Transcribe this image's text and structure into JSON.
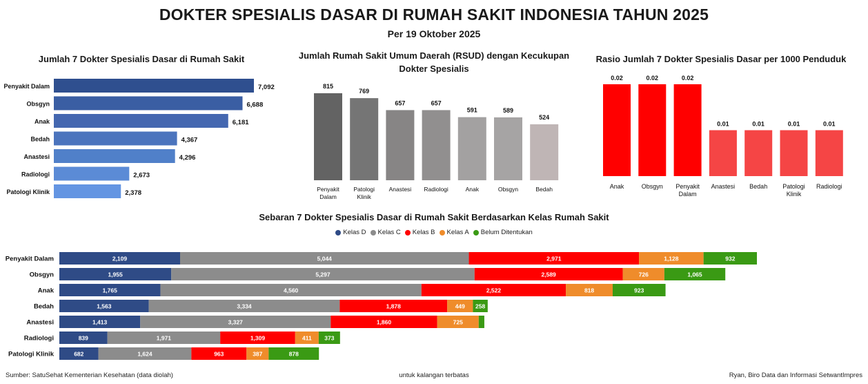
{
  "header": {
    "title": "DOKTER SPESIALIS DASAR DI RUMAH SAKIT INDONESIA TAHUN 2025",
    "subtitle": "Per 19 Oktober 2025"
  },
  "footer": {
    "source": "Sumber: SatuSehat Kementerian Kesehatan (data diolah)",
    "note": "untuk kalangan terbatas",
    "author": "Ryan, Biro Data dan Informasi SetwantImpres"
  },
  "chart_data": [
    {
      "type": "bar",
      "orientation": "horizontal",
      "title": "Jumlah 7 Dokter Spesialis Dasar di Rumah Sakit",
      "categories": [
        "Penyakit Dalam",
        "Obsgyn",
        "Anak",
        "Bedah",
        "Anastesi",
        "Radiologi",
        "Patologi Klinik"
      ],
      "values": [
        7092,
        6688,
        6181,
        4367,
        4296,
        2673,
        2378
      ],
      "value_labels": [
        "7,092",
        "6,688",
        "6,181",
        "4,367",
        "4,296",
        "2,673",
        "2,378"
      ],
      "colors": [
        "#2f4f8f",
        "#3a5ea3",
        "#4467b0",
        "#4b74bd",
        "#5080c9",
        "#5b8bd6",
        "#6495e2"
      ],
      "xlim": [
        0,
        7500
      ],
      "grid": false
    },
    {
      "type": "bar",
      "orientation": "vertical",
      "title": "Jumlah Rumah Sakit Umum Daerah (RSUD) dengan Kecukupan Dokter Spesialis",
      "categories": [
        "Penyakit Dalam",
        "Patologi Klinik",
        "Anastesi",
        "Radiologi",
        "Anak",
        "Obsgyn",
        "Bedah"
      ],
      "values": [
        815,
        769,
        657,
        657,
        591,
        589,
        524
      ],
      "value_labels": [
        "815",
        "769",
        "657",
        "657",
        "591",
        "589",
        "524"
      ],
      "colors": [
        "#636363",
        "#757575",
        "#878585",
        "#918f8f",
        "#a3a1a1",
        "#a6a4a4",
        "#bfb5b5"
      ],
      "ylim": [
        0,
        1000
      ],
      "grid": false
    },
    {
      "type": "bar",
      "orientation": "vertical",
      "title": "Rasio Jumlah 7 Dokter Spesialis Dasar per 1000 Penduduk",
      "categories": [
        "Anak",
        "Obsgyn",
        "Penyakit Dalam",
        "Anastesi",
        "Bedah",
        "Patologi Klinik",
        "Radiologi"
      ],
      "values": [
        0.02,
        0.02,
        0.02,
        0.01,
        0.01,
        0.01,
        0.01
      ],
      "value_labels": [
        "0.02",
        "0.02",
        "0.02",
        "0.01",
        "0.01",
        "0.01",
        "0.01"
      ],
      "colors": [
        "#ff0000",
        "#ff0000",
        "#ff0000",
        "#f54545",
        "#f54545",
        "#f54545",
        "#f54545"
      ],
      "ylim": [
        0,
        0.02
      ],
      "grid": false
    },
    {
      "type": "bar",
      "orientation": "horizontal",
      "stacked": true,
      "title": "Sebaran 7 Dokter Spesialis Dasar di Rumah Sakit Berdasarkan Kelas Rumah Sakit",
      "categories": [
        "Penyakit Dalam",
        "Obsgyn",
        "Anak",
        "Bedah",
        "Anastesi",
        "Radiologi",
        "Patologi Klinik"
      ],
      "series": [
        {
          "name": "Kelas D",
          "color": "#2f4b86",
          "values": [
            2109,
            1955,
            1765,
            1563,
            1413,
            839,
            682
          ],
          "labels": [
            "2,109",
            "1,955",
            "1,765",
            "1,563",
            "1,413",
            "839",
            "682"
          ]
        },
        {
          "name": "Kelas C",
          "color": "#8c8c8c",
          "values": [
            5044,
            5297,
            4560,
            3334,
            3327,
            1971,
            1624
          ],
          "labels": [
            "5,044",
            "5,297",
            "4,560",
            "3,334",
            "3,327",
            "1,971",
            "1,624"
          ]
        },
        {
          "name": "Kelas B",
          "color": "#ff0000",
          "values": [
            2971,
            2589,
            2522,
            1878,
            1860,
            1309,
            963
          ],
          "labels": [
            "2,971",
            "2,589",
            "2,522",
            "1,878",
            "1,860",
            "1,309",
            "963"
          ]
        },
        {
          "name": "Kelas A",
          "color": "#ef8c2b",
          "values": [
            1128,
            726,
            818,
            449,
            725,
            411,
            387
          ],
          "labels": [
            "1,128",
            "726",
            "818",
            "449",
            "725",
            "411",
            "387"
          ]
        },
        {
          "name": "Belum Ditentukan",
          "color": "#3a9a14",
          "values": [
            932,
            1065,
            923,
            258,
            98,
            373,
            878
          ],
          "labels": [
            "932",
            "1,065",
            "923",
            "258",
            "",
            "373",
            "878"
          ]
        }
      ],
      "legend": "top-center",
      "grid": false
    }
  ]
}
